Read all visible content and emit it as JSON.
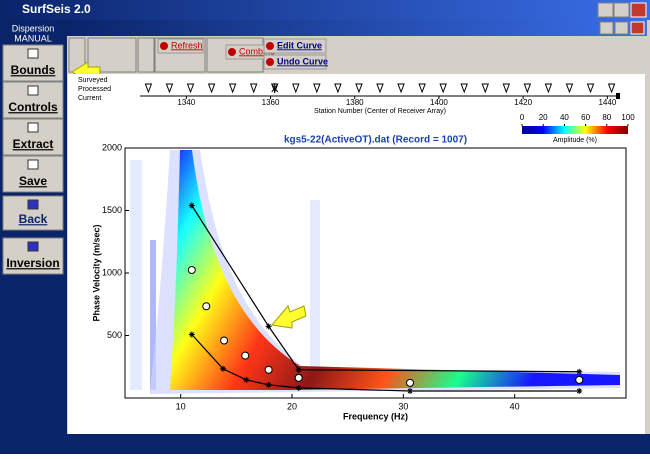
{
  "window": {
    "title": "SurfSeis 2.0"
  },
  "sidebar": {
    "header": "Dispersion",
    "mode": "MANUAL",
    "buttons": [
      "Bounds",
      "Controls",
      "Extract",
      "Save",
      "Back",
      "Inversion"
    ]
  },
  "toolbar": {
    "buttons": [
      "Refresh",
      "Combine",
      "Edit Curve",
      "Undo Curve"
    ]
  },
  "chart_data": [
    {
      "type": "stations",
      "xlabel": "Station Number (Center of Receiver Array)",
      "legend": [
        "Surveyed",
        "Processed",
        "Current"
      ],
      "surveyed": [
        1331,
        1336,
        1341,
        1346,
        1351,
        1356,
        1361,
        1366,
        1371,
        1376,
        1381,
        1386,
        1391,
        1396,
        1401,
        1406,
        1411,
        1416,
        1421,
        1426,
        1431,
        1436,
        1441
      ],
      "current": [
        1361
      ],
      "xlim": [
        1329,
        1443
      ],
      "xticks": [
        1340,
        1360,
        1380,
        1400,
        1420,
        1440
      ]
    },
    {
      "type": "colorbar",
      "xlabel": "Amplitude (%)",
      "xlim": [
        0,
        100
      ],
      "xticks": [
        0,
        20,
        40,
        60,
        80,
        100
      ],
      "colors": [
        "#00008f",
        "#0000ff",
        "#00ffff",
        "#ffff00",
        "#ff0000",
        "#800000"
      ]
    },
    {
      "type": "line",
      "title": "kgs5-22(ActiveOT).dat (Record = 1007)",
      "xlabel": "Frequency (Hz)",
      "ylabel": "Phase Velocity (m/sec)",
      "xlim": [
        5,
        50
      ],
      "xticks": [
        10,
        20,
        30,
        40
      ],
      "ylim": [
        0,
        2000
      ],
      "yticks": [
        500,
        1000,
        1500,
        2000
      ],
      "series": [
        {
          "color": "#ffffff",
          "marker": "circle",
          "line": false,
          "x": [
            11.0,
            12.3,
            13.9,
            15.8,
            17.9,
            20.6,
            30.6,
            45.8
          ],
          "values": [
            1024,
            734,
            460,
            339,
            226,
            161,
            121,
            145
          ]
        },
        {
          "color": "#000000",
          "marker": "asterisk",
          "line": true,
          "x": [
            11.0,
            17.9,
            20.6,
            45.8
          ],
          "values": [
            1540,
            573,
            226,
            210
          ]
        },
        {
          "color": "#000000",
          "marker": "asterisk",
          "line": true,
          "x": [
            11.0,
            13.8,
            15.9,
            17.9,
            20.6,
            30.6,
            45.8
          ],
          "values": [
            508,
            234,
            145,
            105,
            81,
            56,
            56
          ]
        }
      ]
    }
  ]
}
